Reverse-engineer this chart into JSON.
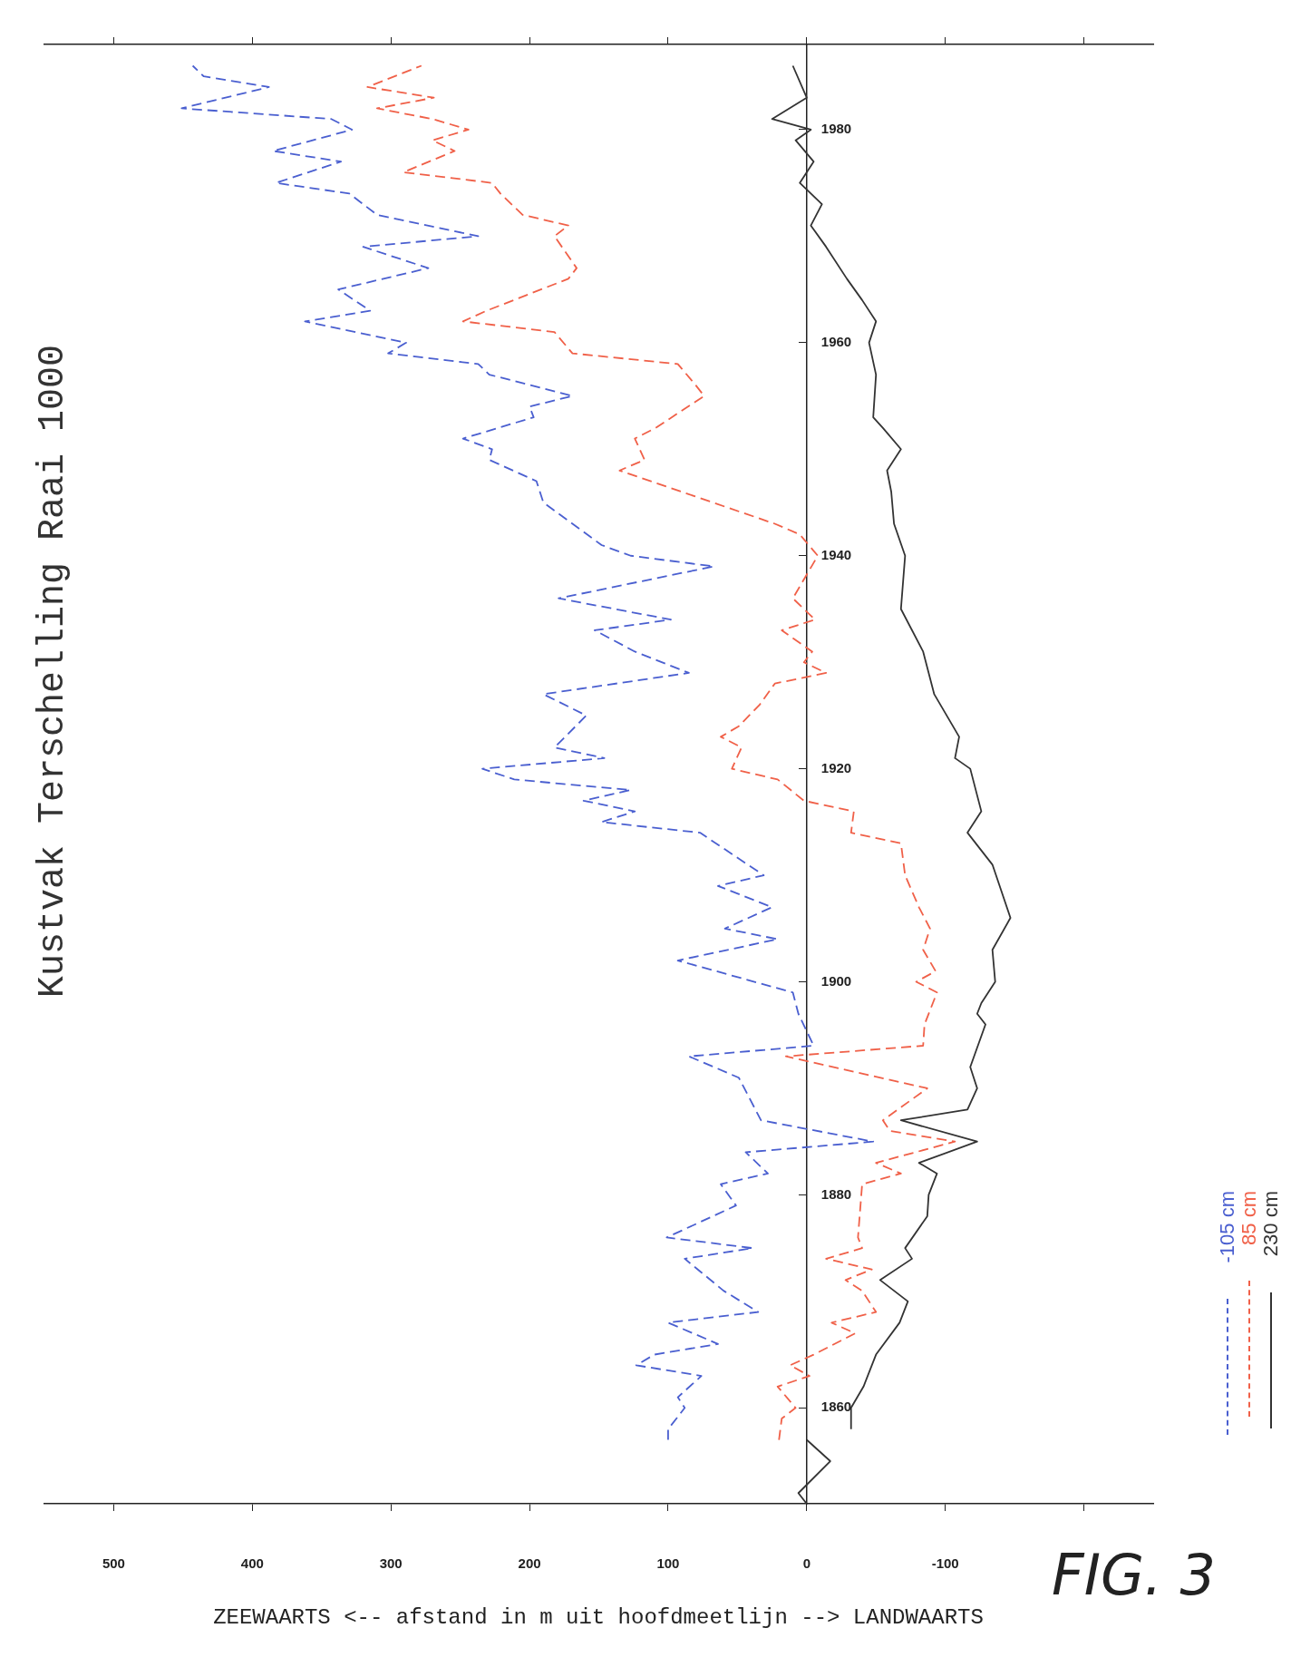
{
  "chart_data": {
    "type": "line",
    "title": "Kustvak Terschelling Raai 1000",
    "orientation": "horizontal",
    "xlabel": "ZEEWAARTS <-- afstand in m uit hoofdmeetlijn --> LANDWAARTS",
    "annotations": [
      "FIG. 3"
    ],
    "ylim": [
      1851,
      1988
    ],
    "yticks": [
      1860,
      1880,
      1900,
      1920,
      1940,
      1960,
      1980
    ],
    "xlim": [
      550,
      -250
    ],
    "xticks": [
      {
        "value": -200,
        "label": null
      },
      -100,
      0,
      100,
      200,
      300,
      400,
      500
    ],
    "grid": false,
    "legend": "bottom right",
    "marker": "none",
    "series": [
      {
        "name": "-105 cm",
        "color": "#4a5fd0",
        "line_style": "dashed",
        "x": [
          1857,
          1858,
          1860,
          1861,
          1863,
          1864,
          1865,
          1866,
          1868,
          1869,
          1871,
          1874,
          1875,
          1876,
          1879,
          1881,
          1882,
          1884,
          1885,
          1887,
          1889,
          1891,
          1893,
          1894,
          1897,
          1899,
          1902,
          1904,
          1905,
          1907,
          1909,
          1910,
          1914,
          1915,
          1916,
          1917,
          1918,
          1919,
          1920,
          1921,
          1922,
          1925,
          1927,
          1929,
          1931,
          1933,
          1934,
          1936,
          1939,
          1940,
          1941,
          1945,
          1947,
          1949,
          1950,
          1951,
          1953,
          1954,
          1955,
          1957,
          1958,
          1959,
          1960,
          1962,
          1963,
          1965,
          1967,
          1969,
          1970,
          1972,
          1974,
          1975,
          1977,
          1978,
          1980,
          1981,
          1982,
          1984,
          1985,
          1986
        ],
        "values": [
          100,
          100,
          88,
          93,
          76,
          123,
          110,
          64,
          100,
          35,
          60,
          88,
          39,
          101,
          51,
          62,
          28,
          44,
          -48,
          33,
          41,
          49,
          85,
          -5,
          6,
          10,
          93,
          21,
          59,
          25,
          64,
          31,
          77,
          148,
          124,
          161,
          127,
          211,
          234,
          146,
          182,
          159,
          190,
          85,
          124,
          153,
          98,
          179,
          67,
          127,
          148,
          190,
          195,
          229,
          227,
          248,
          197,
          200,
          169,
          229,
          237,
          302,
          289,
          362,
          315,
          338,
          273,
          320,
          237,
          310,
          330,
          383,
          336,
          385,
          328,
          343,
          451,
          388,
          435,
          443
        ]
      },
      {
        "name": "85 cm",
        "color": "#f06048",
        "line_style": "dashed",
        "x": [
          1857,
          1859,
          1860,
          1862,
          1863,
          1864,
          1865,
          1867,
          1868,
          1869,
          1871,
          1872,
          1873,
          1874,
          1875,
          1876,
          1881,
          1882,
          1883,
          1885,
          1886,
          1887,
          1890,
          1893,
          1894,
          1896,
          1899,
          1900,
          1901,
          1903,
          1905,
          1907,
          1910,
          1913,
          1914,
          1916,
          1917,
          1919,
          1920,
          1922,
          1923,
          1924,
          1926,
          1928,
          1929,
          1930,
          1931,
          1933,
          1934,
          1936,
          1940,
          1942,
          1943,
          1948,
          1949,
          1951,
          1952,
          1955,
          1956,
          1958,
          1959,
          1961,
          1962,
          1963,
          1966,
          1967,
          1970,
          1971,
          1972,
          1974,
          1975,
          1976,
          1978,
          1979,
          1980,
          1981,
          1982,
          1983,
          1984,
          1986
        ],
        "values": [
          20,
          18,
          8,
          21,
          -2,
          12,
          -5,
          -35,
          -18,
          -50,
          -40,
          -28,
          -47,
          -14,
          -40,
          -37,
          -40,
          -68,
          -50,
          -107,
          -60,
          -55,
          -87,
          15,
          -84,
          -85,
          -94,
          -79,
          -93,
          -84,
          -89,
          -81,
          -71,
          -68,
          -32,
          -34,
          2,
          21,
          54,
          47,
          62,
          49,
          34,
          23,
          -14,
          2,
          -4,
          18,
          -6,
          10,
          -8,
          5,
          23,
          135,
          117,
          124,
          109,
          74,
          80,
          93,
          169,
          182,
          248,
          231,
          172,
          166,
          182,
          172,
          205,
          221,
          227,
          291,
          254,
          270,
          244,
          270,
          310,
          269,
          317,
          278
        ]
      },
      {
        "name": "230 cm",
        "color": "#333333",
        "line_style": "solid",
        "x": [
          1851,
          1852,
          1855,
          1857,
          1857.5,
          1858,
          1860,
          1862,
          1865,
          1868,
          1870,
          1872,
          1874,
          1875,
          1878,
          1880,
          1882,
          1883,
          1885,
          1887,
          1888,
          1890,
          1892,
          1896,
          1897,
          1898,
          1900,
          1903,
          1906,
          1911,
          1914,
          1916,
          1920,
          1921,
          1923,
          1927,
          1931,
          1935,
          1940,
          1943,
          1946,
          1948,
          1950,
          1952,
          1953,
          1957,
          1960,
          1962,
          1964,
          1966,
          1969,
          1971,
          1973,
          1975,
          1977,
          1979,
          1980,
          1981,
          1983,
          1986
        ],
        "values": [
          0,
          6,
          -17,
          0,
          null,
          -32,
          -32,
          -41,
          -50,
          -67,
          -73,
          -53,
          -76,
          -71,
          -87,
          -88,
          -94,
          -81,
          -123,
          -68,
          -116,
          -123,
          -118,
          -129,
          -123,
          -126,
          -136,
          -134,
          -147,
          -134,
          -116,
          -126,
          -118,
          -107,
          -110,
          -92,
          -84,
          -68,
          -71,
          -63,
          -61,
          -58,
          -68,
          -55,
          -48,
          -50,
          -45,
          -50,
          -40,
          -29,
          -14,
          -3,
          -11,
          5,
          -5,
          8,
          -3,
          25,
          0,
          10
        ]
      }
    ]
  }
}
